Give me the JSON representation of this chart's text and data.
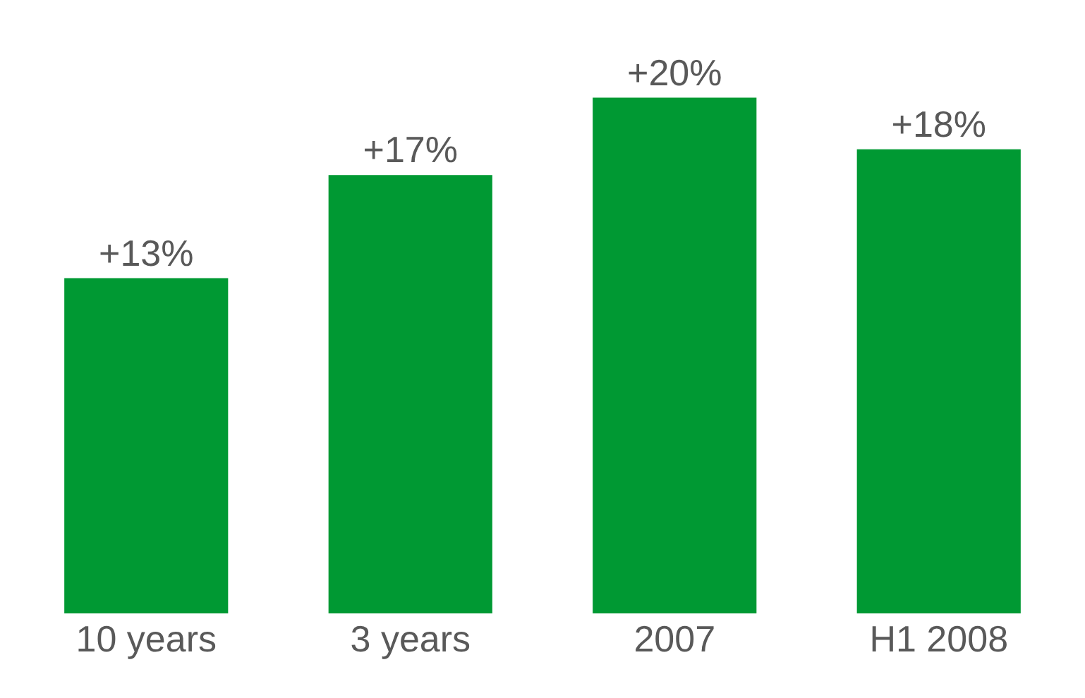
{
  "chart_data": {
    "type": "bar",
    "categories": [
      "10 years",
      "3 years",
      "2007",
      "H1 2008"
    ],
    "values": [
      13,
      17,
      20,
      18
    ],
    "value_labels": [
      "+13%",
      "+17%",
      "+20%",
      "+18%"
    ],
    "color": "#009933",
    "tick_labels": "x",
    "grid": false
  }
}
